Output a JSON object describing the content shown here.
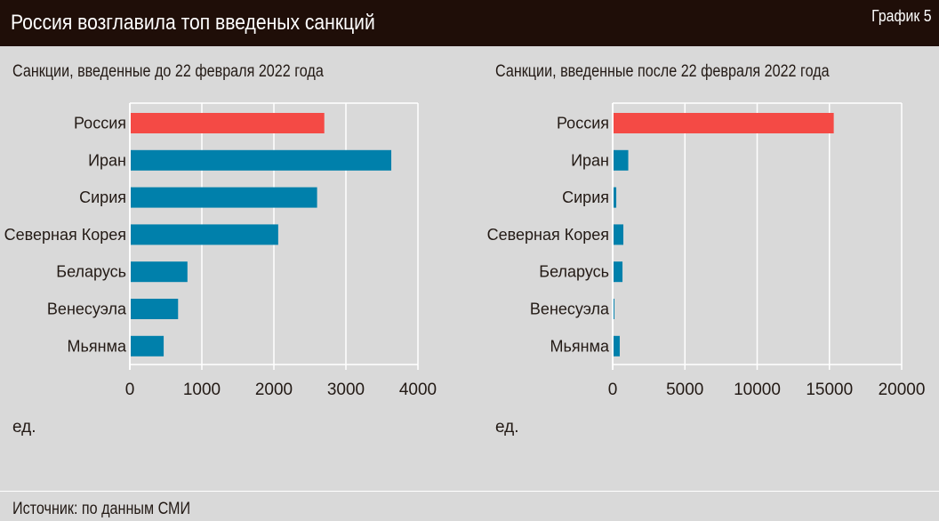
{
  "header": {
    "title": "Россия возглавила топ введеных санкций",
    "chart_number": "График 5"
  },
  "footer": {
    "source": "Источник: по данным СМИ"
  },
  "colors": {
    "highlight": "#f44a45",
    "bar": "#0080ab",
    "background": "#d9d9d9",
    "header": "#1f0e08",
    "grid": "#ffffff"
  },
  "chart_data": [
    {
      "type": "bar",
      "orientation": "horizontal",
      "title": "Санкции, введенные до 22 февраля 2022 года",
      "xlabel": "ед.",
      "categories": [
        "Россия",
        "Иран",
        "Сирия",
        "Северная Корея",
        "Беларусь",
        "Венесуэла",
        "Мьянма"
      ],
      "values": [
        2700,
        3630,
        2600,
        2060,
        800,
        670,
        470
      ],
      "xlim": [
        0,
        4000
      ],
      "ticks": [
        "0",
        "1000",
        "2000",
        "3000",
        "4000"
      ],
      "tick_values": [
        0,
        1000,
        2000,
        3000,
        4000
      ],
      "grid": true,
      "highlight_index": 0
    },
    {
      "type": "bar",
      "orientation": "horizontal",
      "title": "Санкции, введенные после 22 февраля 2022 года",
      "xlabel": "ед.",
      "categories": [
        "Россия",
        "Иран",
        "Сирия",
        "Северная Корея",
        "Беларусь",
        "Венесуэла",
        "Мьянма"
      ],
      "values": [
        15300,
        1080,
        250,
        740,
        680,
        120,
        490
      ],
      "xlim": [
        0,
        20000
      ],
      "ticks": [
        "0",
        "5000",
        "10000",
        "15000",
        "20000"
      ],
      "tick_values": [
        0,
        5000,
        10000,
        15000,
        20000
      ],
      "grid": true,
      "highlight_index": 0
    }
  ]
}
